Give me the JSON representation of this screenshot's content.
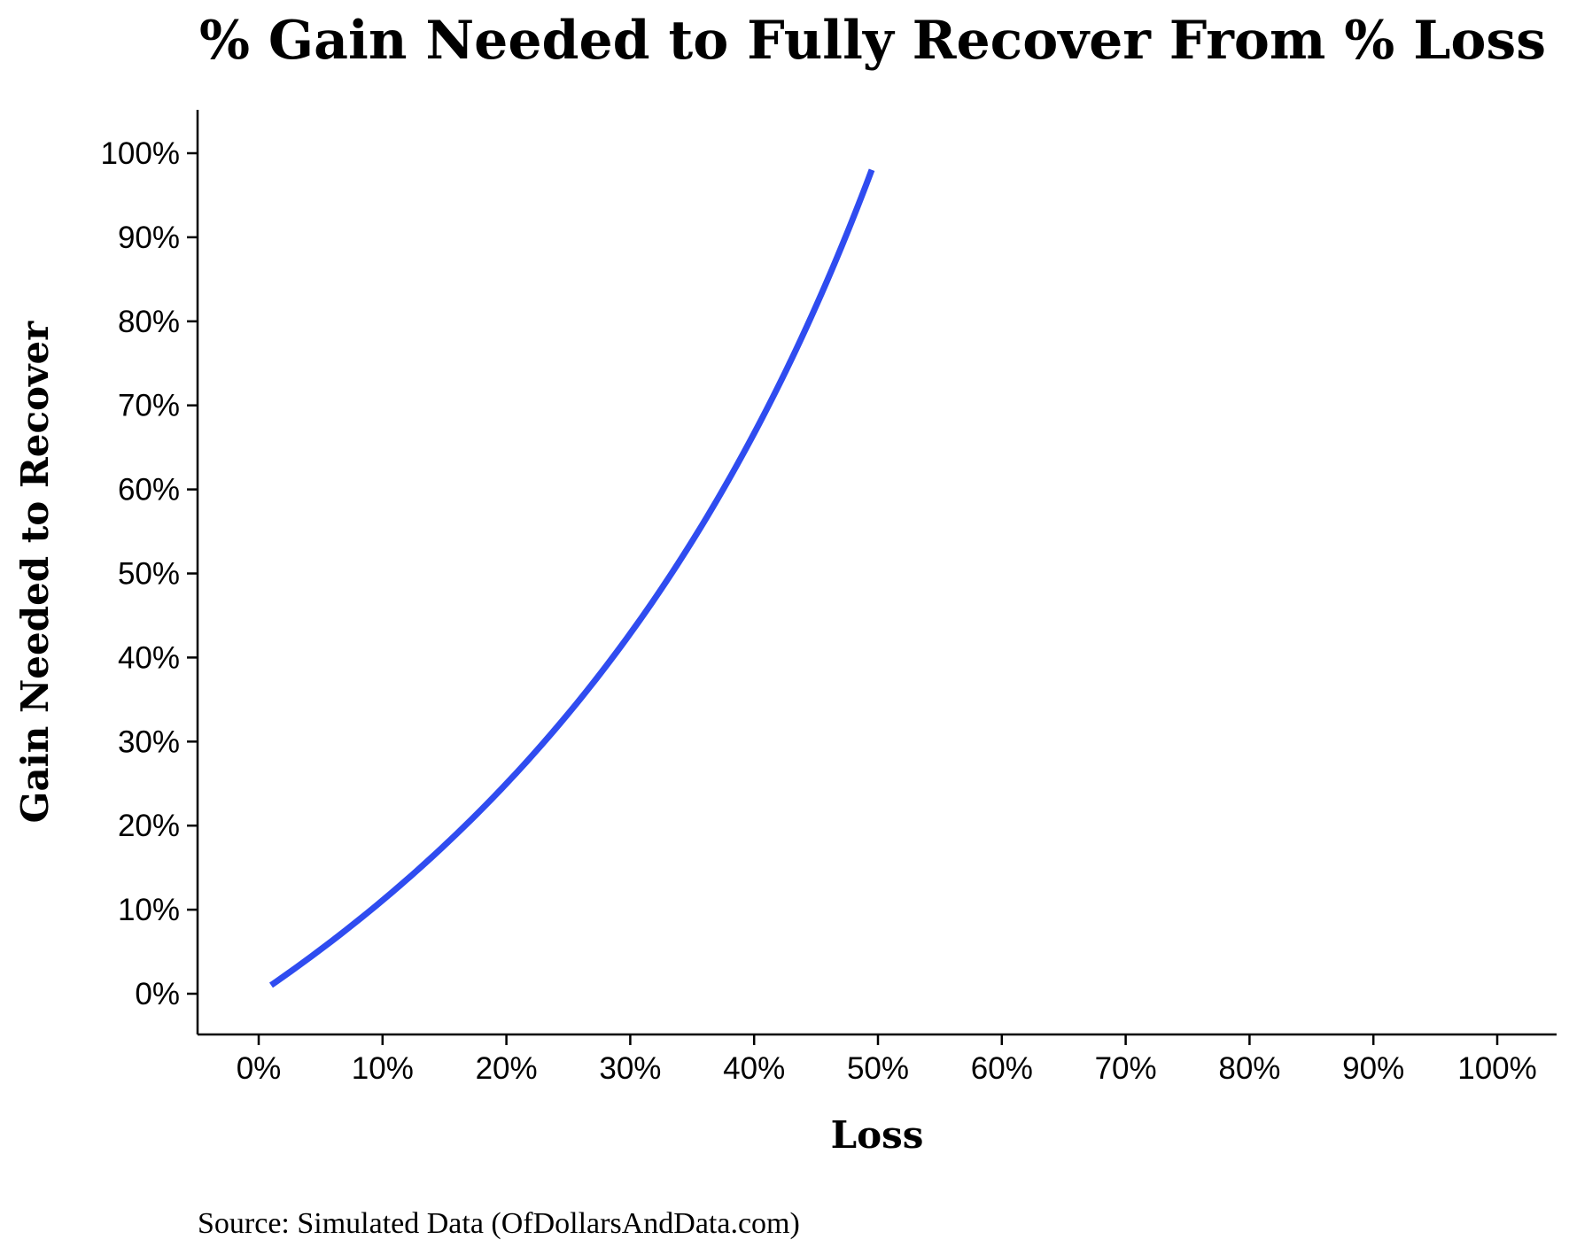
{
  "chart_data": {
    "type": "line",
    "title": "% Gain Needed to Fully Recover From % Loss",
    "xlabel": "Loss",
    "ylabel": "Gain Needed to Recover",
    "source": "Source:  Simulated Data (OfDollarsAndData.com)",
    "xlim": [
      0,
      100
    ],
    "ylim": [
      0,
      100
    ],
    "x_ticks": [
      0,
      10,
      20,
      30,
      40,
      50,
      60,
      70,
      80,
      90,
      100
    ],
    "x_tick_labels": [
      "0%",
      "10%",
      "20%",
      "30%",
      "40%",
      "50%",
      "60%",
      "70%",
      "80%",
      "90%",
      "100%"
    ],
    "y_ticks": [
      0,
      10,
      20,
      30,
      40,
      50,
      60,
      70,
      80,
      90,
      100
    ],
    "y_tick_labels": [
      "0%",
      "10%",
      "20%",
      "30%",
      "40%",
      "50%",
      "60%",
      "70%",
      "80%",
      "90%",
      "100%"
    ],
    "grid": false,
    "legend": "none",
    "series": [
      {
        "color": "#2f4cf0",
        "x": [
          1,
          5,
          10,
          15,
          20,
          25,
          30,
          35,
          40,
          45,
          49.5
        ],
        "y": [
          1,
          5.3,
          11.1,
          17.6,
          25,
          33.3,
          42.9,
          53.8,
          66.7,
          81.8,
          98
        ]
      }
    ]
  }
}
